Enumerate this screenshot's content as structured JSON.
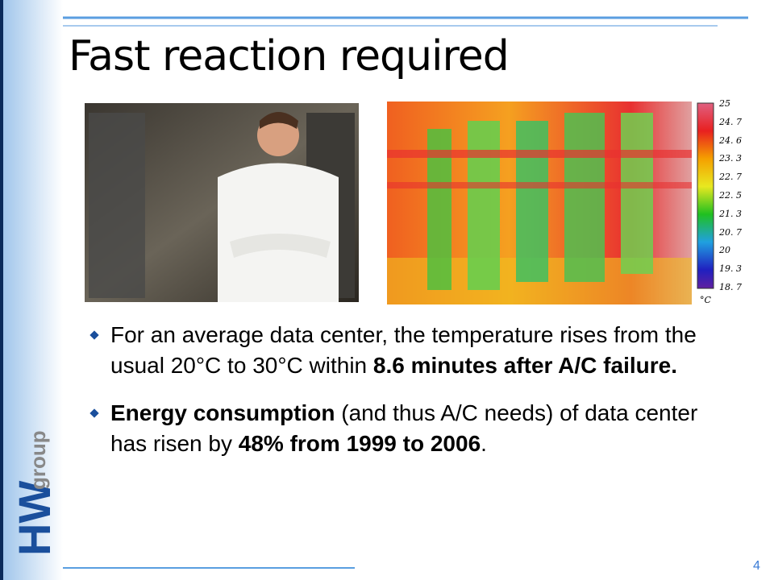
{
  "title": "Fast reaction required",
  "thermal_scale": {
    "labels": [
      "25",
      "24. 7",
      "24. 6",
      "23. 3",
      "22. 7",
      "22. 5",
      "21. 3",
      "20. 7",
      "20",
      "19. 3",
      "18. 7"
    ],
    "unit": "°C"
  },
  "bullets": [
    {
      "runs": [
        {
          "text": "For an average data center, the temperature rises from the usual 20°C to 30°C within ",
          "bold": false
        },
        {
          "text": "8.6 minutes after A/C failure.",
          "bold": true
        }
      ]
    },
    {
      "runs": [
        {
          "text": "Energy consumption",
          "bold": true
        },
        {
          "text": " (and thus A/C needs) of data center has risen by ",
          "bold": false
        },
        {
          "text": "48% from 1999 to 2006",
          "bold": true
        },
        {
          "text": ".",
          "bold": false
        }
      ]
    }
  ],
  "logo": {
    "main": "HW",
    "sub": "group"
  },
  "page_number": "4"
}
